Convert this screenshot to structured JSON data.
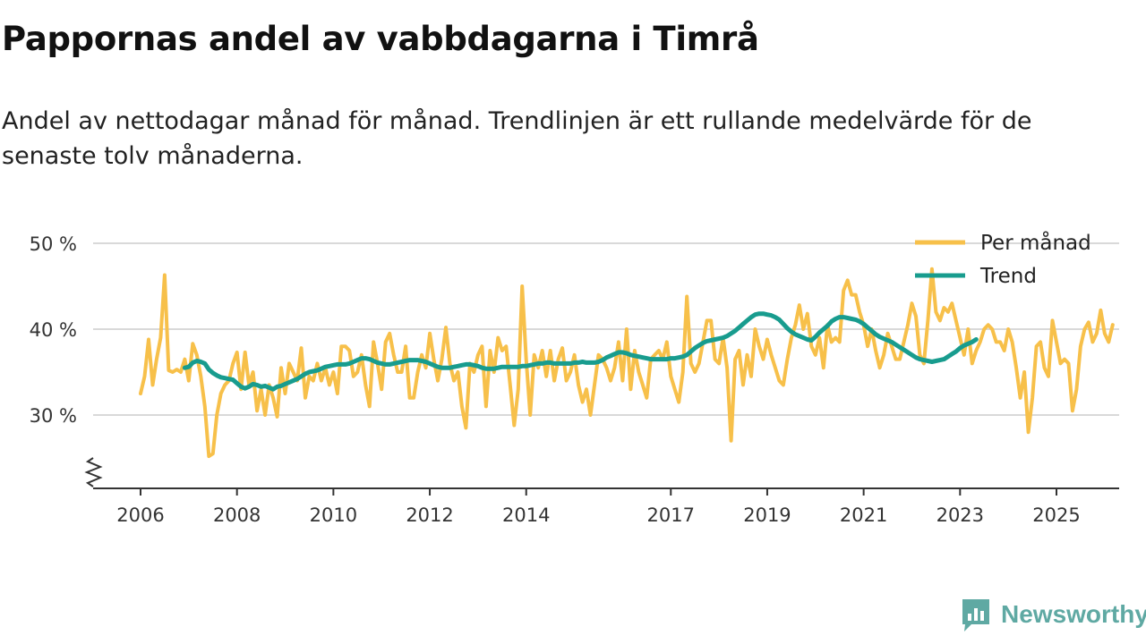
{
  "title": "Pappornas andel av vabbdagarna i Timrå",
  "subtitle": "Andel av nettodagar månad för månad. Trendlinjen är ett rullande medelvärde för de senaste tolv månaderna.",
  "brand": {
    "name": "Newsworthy",
    "icon": "newsworthy-logo-icon"
  },
  "colors": {
    "monthly": "#f7c04a",
    "trend": "#189c8e",
    "grid": "#d9d9d9",
    "axis": "#333333"
  },
  "chart_data": {
    "type": "line",
    "title": "Pappornas andel av vabbdagarna i Timrå",
    "xlabel": "",
    "ylabel": "",
    "ylim": [
      22,
      50
    ],
    "y_axis_break": true,
    "y_ticks": [
      30,
      40,
      50
    ],
    "y_tick_labels": [
      "30 %",
      "40 %",
      "50 %"
    ],
    "x_ticks": [
      2006,
      2008,
      2010,
      2012,
      2014,
      2017,
      2019,
      2021,
      2023,
      2025
    ],
    "x_tick_labels": [
      "2006",
      "2008",
      "2010",
      "2012",
      "2014",
      "2017",
      "2019",
      "2021",
      "2023",
      "2025"
    ],
    "legend_position": "top-right",
    "series": [
      {
        "name": "Per månad",
        "start": 2006.0,
        "step": 0.0833333,
        "values": [
          32.5,
          34.5,
          38.8,
          33.5,
          36.5,
          39.0,
          46.3,
          35.2,
          35.0,
          35.3,
          35.0,
          36.5,
          34.0,
          38.3,
          37.0,
          34.5,
          31.0,
          25.2,
          25.5,
          30.0,
          32.5,
          33.5,
          34.0,
          36.0,
          37.3,
          33.0,
          37.3,
          33.5,
          35.0,
          30.5,
          33.0,
          30.0,
          33.5,
          32.0,
          29.8,
          35.5,
          32.5,
          36.0,
          35.0,
          34.0,
          37.8,
          32.0,
          34.5,
          34.0,
          36.0,
          34.0,
          35.5,
          33.5,
          35.0,
          32.5,
          38.0,
          38.0,
          37.5,
          34.5,
          35.0,
          37.0,
          33.5,
          31.0,
          38.5,
          36.0,
          33.0,
          38.5,
          39.5,
          37.0,
          35.0,
          35.0,
          38.0,
          32.0,
          32.0,
          35.0,
          37.0,
          35.5,
          39.5,
          36.5,
          34.0,
          36.5,
          40.2,
          36.0,
          34.0,
          35.0,
          31.0,
          28.5,
          36.0,
          35.0,
          37.0,
          38.0,
          31.0,
          37.5,
          35.0,
          39.0,
          37.5,
          38.0,
          33.5,
          28.8,
          33.0,
          45.0,
          36.5,
          30.0,
          37.0,
          35.5,
          37.5,
          34.5,
          37.5,
          34.0,
          36.5,
          37.8,
          34.0,
          35.0,
          37.0,
          33.5,
          31.5,
          33.0,
          30.0,
          33.5,
          37.0,
          36.5,
          35.5,
          34.0,
          35.5,
          38.5,
          34.0,
          40.0,
          33.0,
          37.5,
          35.0,
          33.5,
          32.0,
          36.5,
          37.0,
          37.5,
          36.5,
          38.5,
          34.5,
          33.0,
          31.5,
          35.0,
          43.8,
          36.0,
          35.0,
          36.0,
          38.5,
          41.0,
          41.0,
          36.5,
          36.0,
          39.0,
          35.5,
          27.0,
          36.5,
          37.5,
          33.5,
          37.0,
          34.5,
          40.0,
          38.0,
          36.5,
          38.8,
          37.0,
          35.5,
          34.0,
          33.5,
          36.5,
          39.0,
          40.5,
          42.8,
          40.0,
          41.8,
          38.0,
          37.0,
          39.0,
          35.5,
          40.5,
          38.5,
          39.0,
          38.5,
          44.5,
          45.7,
          44.0,
          44.0,
          42.0,
          40.5,
          38.0,
          40.0,
          37.5,
          35.5,
          37.0,
          39.5,
          38.0,
          36.5,
          36.5,
          38.5,
          40.5,
          43.0,
          41.5,
          37.0,
          36.0,
          41.0,
          47.0,
          42.0,
          41.0,
          42.5,
          42.0,
          43.0,
          41.0,
          39.0,
          37.0,
          40.0,
          36.0,
          37.5,
          38.5,
          40.0,
          40.5,
          40.0,
          38.5,
          38.5,
          37.5,
          40.0,
          38.5,
          35.5,
          32.0,
          35.0,
          28.0,
          32.0,
          38.0,
          38.5,
          35.5,
          34.5,
          41.0,
          38.5,
          36.0,
          36.5,
          36.0,
          30.5,
          33.0,
          38.0,
          40.0,
          40.8,
          38.5,
          39.5,
          42.2,
          39.5,
          38.5,
          40.5
        ]
      },
      {
        "name": "Trend",
        "start": 2006.9167,
        "step": 0.0833333,
        "values": [
          35.5,
          35.6,
          36.1,
          36.3,
          36.2,
          36.0,
          35.3,
          34.9,
          34.6,
          34.4,
          34.3,
          34.2,
          34.1,
          33.7,
          33.3,
          33.1,
          33.3,
          33.6,
          33.5,
          33.3,
          33.4,
          33.2,
          33.0,
          33.3,
          33.4,
          33.6,
          33.8,
          34.0,
          34.2,
          34.5,
          34.8,
          35.0,
          35.1,
          35.2,
          35.4,
          35.6,
          35.7,
          35.8,
          35.9,
          35.9,
          35.9,
          36.0,
          36.2,
          36.4,
          36.6,
          36.6,
          36.5,
          36.3,
          36.1,
          36.0,
          35.9,
          35.9,
          36.0,
          36.1,
          36.2,
          36.3,
          36.4,
          36.4,
          36.4,
          36.3,
          36.2,
          36.0,
          35.8,
          35.6,
          35.5,
          35.5,
          35.5,
          35.6,
          35.7,
          35.8,
          35.9,
          35.9,
          35.8,
          35.7,
          35.5,
          35.4,
          35.4,
          35.4,
          35.5,
          35.6,
          35.6,
          35.6,
          35.6,
          35.6,
          35.7,
          35.7,
          35.8,
          35.9,
          36.0,
          36.0,
          36.1,
          36.1,
          36.0,
          36.0,
          36.0,
          36.0,
          36.0,
          36.1,
          36.1,
          36.2,
          36.1,
          36.1,
          36.1,
          36.2,
          36.4,
          36.7,
          36.9,
          37.1,
          37.3,
          37.3,
          37.2,
          37.0,
          36.9,
          36.8,
          36.7,
          36.6,
          36.5,
          36.5,
          36.5,
          36.5,
          36.5,
          36.6,
          36.6,
          36.7,
          36.8,
          37.0,
          37.4,
          37.8,
          38.1,
          38.4,
          38.6,
          38.7,
          38.8,
          38.9,
          39.0,
          39.2,
          39.5,
          39.8,
          40.2,
          40.6,
          41.0,
          41.4,
          41.7,
          41.8,
          41.8,
          41.7,
          41.6,
          41.4,
          41.1,
          40.6,
          40.1,
          39.7,
          39.4,
          39.2,
          39.0,
          38.8,
          38.7,
          39.1,
          39.6,
          40.0,
          40.4,
          40.9,
          41.2,
          41.4,
          41.4,
          41.3,
          41.2,
          41.1,
          40.9,
          40.6,
          40.2,
          39.8,
          39.4,
          39.1,
          38.9,
          38.7,
          38.5,
          38.2,
          37.9,
          37.6,
          37.3,
          37.0,
          36.7,
          36.5,
          36.4,
          36.3,
          36.2,
          36.3,
          36.4,
          36.5,
          36.8,
          37.1,
          37.4,
          37.8,
          38.1,
          38.3,
          38.5,
          38.8
        ]
      }
    ]
  }
}
